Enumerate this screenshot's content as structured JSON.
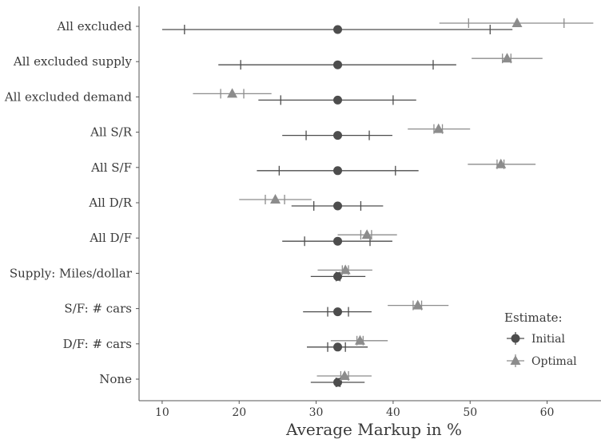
{
  "chart_data": {
    "type": "scatter",
    "xlabel": "Average Markup in %",
    "ylabel": "",
    "xlim": [
      7,
      67
    ],
    "x_ticks": [
      "10",
      "20",
      "30",
      "40",
      "50",
      "60"
    ],
    "x_tick_values": [
      10,
      20,
      30,
      40,
      50,
      60
    ],
    "categories": [
      "All excluded",
      "All excluded supply",
      "All excluded demand",
      "All S/R",
      "All S/F",
      "All D/R",
      "All D/F",
      "Supply: Miles/dollar",
      "S/F: # cars",
      "D/F: # cars",
      "None"
    ],
    "series": [
      {
        "name": "Initial",
        "marker": "circle",
        "color": "#4d4d4d",
        "estimate": [
          32.8,
          32.8,
          32.8,
          32.8,
          32.8,
          32.8,
          32.8,
          32.8,
          32.8,
          32.8,
          32.8
        ],
        "inner": [
          [
            12.9,
            52.6
          ],
          [
            20.2,
            45.2
          ],
          [
            25.4,
            40.0
          ],
          [
            28.7,
            36.9
          ],
          [
            25.2,
            40.3
          ],
          [
            29.7,
            35.8
          ],
          [
            28.5,
            37.0
          ],
          [
            32.6,
            33.1
          ],
          [
            31.5,
            34.2
          ],
          [
            31.5,
            33.8
          ],
          [
            32.6,
            33.1
          ]
        ],
        "outer": [
          [
            10.0,
            55.5
          ],
          [
            17.3,
            48.2
          ],
          [
            22.5,
            43.0
          ],
          [
            25.6,
            39.9
          ],
          [
            22.3,
            43.3
          ],
          [
            26.8,
            38.7
          ],
          [
            25.6,
            39.9
          ],
          [
            29.3,
            36.4
          ],
          [
            28.3,
            37.2
          ],
          [
            28.8,
            36.7
          ],
          [
            29.3,
            36.3
          ]
        ]
      },
      {
        "name": "Optimal",
        "marker": "triangle",
        "color": "#8c8c8c",
        "estimate": [
          56.1,
          54.8,
          19.1,
          45.9,
          54.0,
          24.7,
          36.6,
          33.8,
          43.2,
          35.7,
          33.7
        ],
        "inner": [
          [
            49.8,
            62.2
          ],
          [
            54.2,
            55.3
          ],
          [
            17.6,
            20.6
          ],
          [
            45.3,
            46.4
          ],
          [
            53.5,
            54.4
          ],
          [
            23.4,
            25.9
          ],
          [
            35.8,
            37.2
          ],
          [
            33.4,
            34.2
          ],
          [
            42.6,
            43.7
          ],
          [
            35.3,
            36.1
          ],
          [
            33.2,
            34.2
          ]
        ],
        "outer": [
          [
            46.0,
            66.0
          ],
          [
            50.2,
            59.4
          ],
          [
            14.0,
            24.2
          ],
          [
            41.9,
            50.0
          ],
          [
            49.7,
            58.5
          ],
          [
            20.0,
            29.4
          ],
          [
            32.8,
            40.5
          ],
          [
            30.2,
            37.3
          ],
          [
            39.3,
            47.2
          ],
          [
            31.9,
            39.3
          ],
          [
            30.1,
            37.2
          ]
        ]
      }
    ],
    "legend": {
      "title": "Estimate:",
      "position": "bottom-right",
      "entries": [
        "Initial",
        "Optimal"
      ]
    },
    "grid": false
  }
}
